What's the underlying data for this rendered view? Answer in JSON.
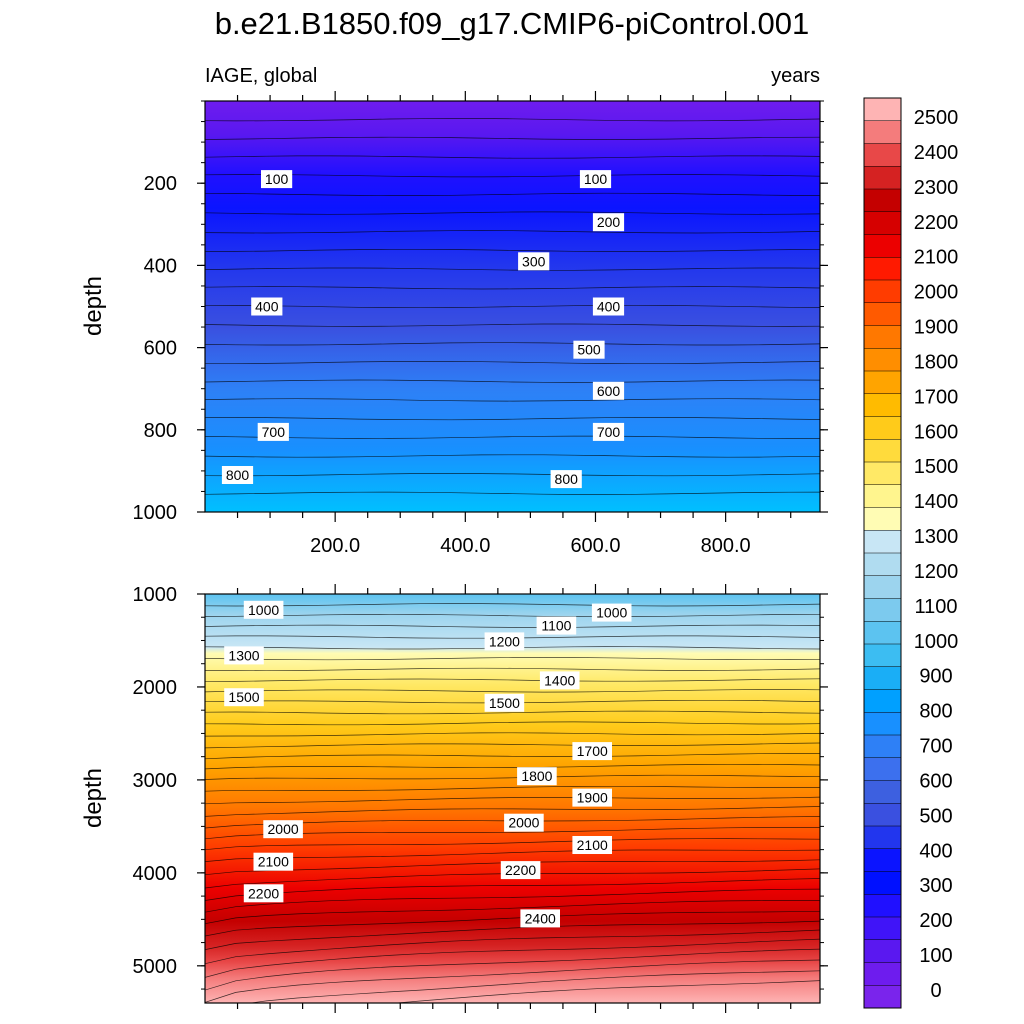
{
  "chart_data": [
    {
      "type": "contour",
      "title": "b.e21.B1850.f09_g17.CMIP6-piControl.001",
      "left_string": "IAGE, global",
      "right_string": "years",
      "ylabel": "depth",
      "xlim": [
        0,
        945
      ],
      "ylim": [
        0,
        1000
      ],
      "y_reversed": true,
      "x_ticks": [
        200.0,
        400.0,
        600.0,
        800.0
      ],
      "x_tick_labels": [
        "200.0",
        "400.0",
        "600.0",
        "800.0"
      ],
      "y_ticks": [
        200,
        400,
        600,
        800,
        1000
      ],
      "y_tick_labels": [
        "200",
        "400",
        "600",
        "800",
        "1000"
      ],
      "contour_labels": [
        {
          "text": "100",
          "x": 110,
          "y": 190
        },
        {
          "text": "100",
          "x": 600,
          "y": 190
        },
        {
          "text": "200",
          "x": 620,
          "y": 295
        },
        {
          "text": "300",
          "x": 505,
          "y": 390
        },
        {
          "text": "400",
          "x": 95,
          "y": 500
        },
        {
          "text": "400",
          "x": 620,
          "y": 500
        },
        {
          "text": "500",
          "x": 590,
          "y": 605
        },
        {
          "text": "600",
          "x": 620,
          "y": 705
        },
        {
          "text": "700",
          "x": 105,
          "y": 805
        },
        {
          "text": "700",
          "x": 620,
          "y": 805
        },
        {
          "text": "800",
          "x": 50,
          "y": 910
        },
        {
          "text": "800",
          "x": 555,
          "y": 920
        }
      ]
    },
    {
      "type": "contour",
      "ylabel": "depth",
      "xlim": [
        0,
        945
      ],
      "ylim": [
        1000,
        5400
      ],
      "y_reversed": true,
      "y_ticks": [
        1000,
        2000,
        3000,
        4000,
        5000
      ],
      "y_tick_labels": [
        "1000",
        "2000",
        "3000",
        "4000",
        "5000"
      ],
      "contour_labels": [
        {
          "text": "1000",
          "x": 90,
          "y": 1170
        },
        {
          "text": "1000",
          "x": 625,
          "y": 1200
        },
        {
          "text": "1100",
          "x": 540,
          "y": 1340
        },
        {
          "text": "1200",
          "x": 460,
          "y": 1510
        },
        {
          "text": "1300",
          "x": 60,
          "y": 1660
        },
        {
          "text": "1400",
          "x": 545,
          "y": 1930
        },
        {
          "text": "1500",
          "x": 60,
          "y": 2110
        },
        {
          "text": "1500",
          "x": 460,
          "y": 2170
        },
        {
          "text": "1700",
          "x": 595,
          "y": 2690
        },
        {
          "text": "1800",
          "x": 510,
          "y": 2960
        },
        {
          "text": "1900",
          "x": 595,
          "y": 3190
        },
        {
          "text": "2000",
          "x": 120,
          "y": 3530
        },
        {
          "text": "2000",
          "x": 490,
          "y": 3460
        },
        {
          "text": "2100",
          "x": 595,
          "y": 3700
        },
        {
          "text": "2100",
          "x": 105,
          "y": 3880
        },
        {
          "text": "2200",
          "x": 485,
          "y": 3970
        },
        {
          "text": "2200",
          "x": 90,
          "y": 4220
        },
        {
          "text": "2400",
          "x": 515,
          "y": 4490
        }
      ]
    }
  ],
  "colorbar": {
    "labels": [
      "2500",
      "2400",
      "2300",
      "2200",
      "2100",
      "2000",
      "1900",
      "1800",
      "1700",
      "1600",
      "1500",
      "1400",
      "1300",
      "1200",
      "1100",
      "1000",
      "900",
      "800",
      "700",
      "600",
      "500",
      "400",
      "300",
      "200",
      "100",
      "0"
    ],
    "colors": [
      "#feb4b4",
      "#f47c7c",
      "#e84848",
      "#d52222",
      "#c40000",
      "#d60000",
      "#ec0000",
      "#ff1a00",
      "#ff3c00",
      "#ff5a00",
      "#ff7800",
      "#ff8e00",
      "#ffa400",
      "#ffbb00",
      "#ffcb1a",
      "#ffdb3c",
      "#ffe966",
      "#fff58e",
      "#fffcb4",
      "#c8e6f5",
      "#b0dcf0",
      "#9cd4ee",
      "#7ccaee",
      "#5cc3f0",
      "#3cbdf2",
      "#1aaef6",
      "#00a0ff",
      "#1890ff",
      "#2e80f6",
      "#3c70ee",
      "#3d60e0",
      "#3a50e0",
      "#2236ee",
      "#0b14ff",
      "#0010ff",
      "#2010ff",
      "#4014f8",
      "#5a18f0",
      "#6e1cee",
      "#7a24ec"
    ]
  }
}
